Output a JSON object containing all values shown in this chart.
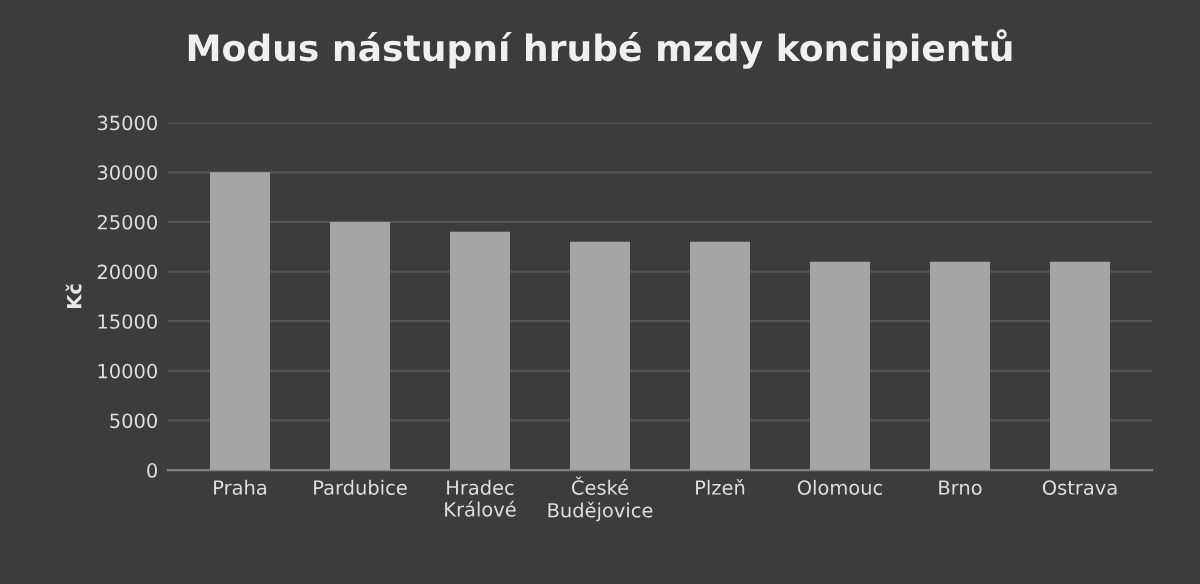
{
  "chart_data": {
    "type": "bar",
    "title": "Modus nástupní hrubé mzdy koncipientů",
    "ylabel": "Kč",
    "categories": [
      "Praha",
      "Pardubice",
      "Hradec\nKrálové",
      "České\nBudějovice",
      "Plzeň",
      "Olomouc",
      "Brno",
      "Ostrava"
    ],
    "values": [
      30000,
      25000,
      24000,
      23000,
      23000,
      21000,
      21000,
      21000
    ],
    "color": "#a5a5a5",
    "ylim": [
      0,
      35000
    ],
    "yticks": [
      0,
      5000,
      10000,
      15000,
      20000,
      25000,
      30000,
      35000
    ],
    "grid": "y",
    "legend": false
  }
}
